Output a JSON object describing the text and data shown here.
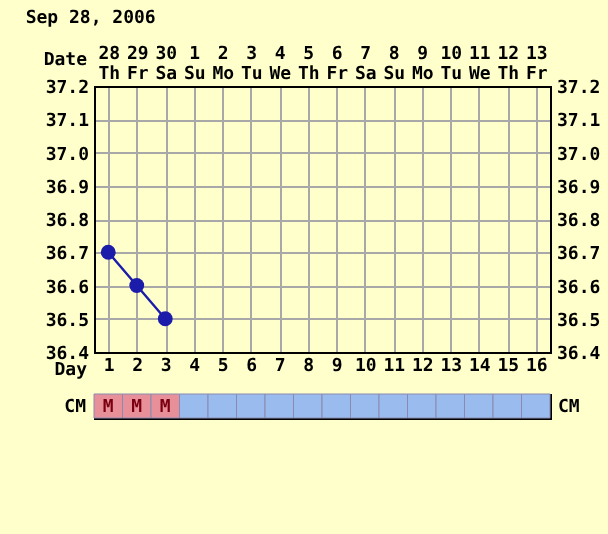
{
  "chart_data": {
    "type": "line",
    "title": "Sep 28, 2006",
    "xlabel": "Day",
    "x2label": "Date",
    "x": [
      1,
      2,
      3
    ],
    "series": [
      {
        "color": "#1c1caa",
        "values": [
          36.7,
          36.6,
          36.5
        ]
      }
    ],
    "xlim": [
      0.5,
      16.5
    ],
    "xticks": [
      1,
      2,
      3,
      4,
      5,
      6,
      7,
      8,
      9,
      10,
      11,
      12,
      13,
      14,
      15,
      16
    ],
    "x2lim": [
      "2006-09-27T12:00",
      "2006-10-13T12:00"
    ],
    "x2ticks": [
      {
        "value": "2006-09-28",
        "label": "28 Th"
      },
      {
        "value": "2006-09-29",
        "label": "29 Fr"
      },
      {
        "value": "2006-09-30",
        "label": "30 Sa"
      },
      {
        "value": "2006-10-01",
        "label": "1 Su"
      },
      {
        "value": "2006-10-02",
        "label": "2 Mo"
      },
      {
        "value": "2006-10-03",
        "label": "3 Tu"
      },
      {
        "value": "2006-10-04",
        "label": "4 We"
      },
      {
        "value": "2006-10-05",
        "label": "5 Th"
      },
      {
        "value": "2006-10-06",
        "label": "6 Fr"
      },
      {
        "value": "2006-10-07",
        "label": "7 Sa"
      },
      {
        "value": "2006-10-08",
        "label": "8 Su"
      },
      {
        "value": "2006-10-09",
        "label": "9 Mo"
      },
      {
        "value": "2006-10-10",
        "label": "10 Tu"
      },
      {
        "value": "2006-10-11",
        "label": "11 We"
      },
      {
        "value": "2006-10-12",
        "label": "12 Th"
      },
      {
        "value": "2006-10-13",
        "label": "13 Fr"
      }
    ],
    "ylim": [
      36.4,
      37.2
    ],
    "yticks": [
      36.4,
      36.5,
      36.6,
      36.7,
      36.8,
      36.9,
      {
        "value": 37,
        "label": "37.0"
      },
      37.1,
      37.2
    ],
    "y2lim": [
      36.4,
      37.2
    ],
    "y2ticks": [
      36.4,
      36.5,
      36.6,
      36.7,
      36.8,
      36.9,
      {
        "value": 37,
        "label": "37.0"
      },
      37.1,
      37.2
    ],
    "grid": true,
    "marker": "circle",
    "line_style": "solid",
    "annotations": [
      "CM",
      "M",
      "M",
      "M"
    ]
  }
}
